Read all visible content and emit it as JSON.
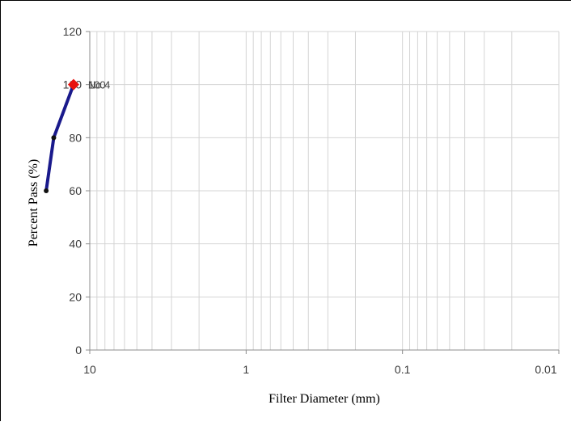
{
  "chart_data": {
    "type": "scatter",
    "title": "",
    "xlabel": "Filter Diameter (mm)",
    "ylabel": "Percent Pass (%)",
    "x_scale": "log",
    "x_reversed": true,
    "xlim": [
      10,
      0.01
    ],
    "ylim": [
      0,
      120
    ],
    "y_ticks": [
      0,
      20,
      40,
      60,
      80,
      100,
      120
    ],
    "x_ticks": [
      10,
      1,
      0.1,
      0.01
    ],
    "x_tick_labels": [
      "10",
      "1",
      "0.1",
      "0.01"
    ],
    "grid": true,
    "series": [
      {
        "color": "#1a1a8c",
        "marker": "diamond",
        "marker_color": "#e8130f",
        "points": [
          {
            "x": 19,
            "y": 60
          },
          {
            "x": 17,
            "y": 80
          },
          {
            "x": 12.7,
            "y": 100,
            "label": "No.4"
          }
        ]
      }
    ],
    "overlapping_labels": [
      "No.4",
      "100"
    ]
  }
}
